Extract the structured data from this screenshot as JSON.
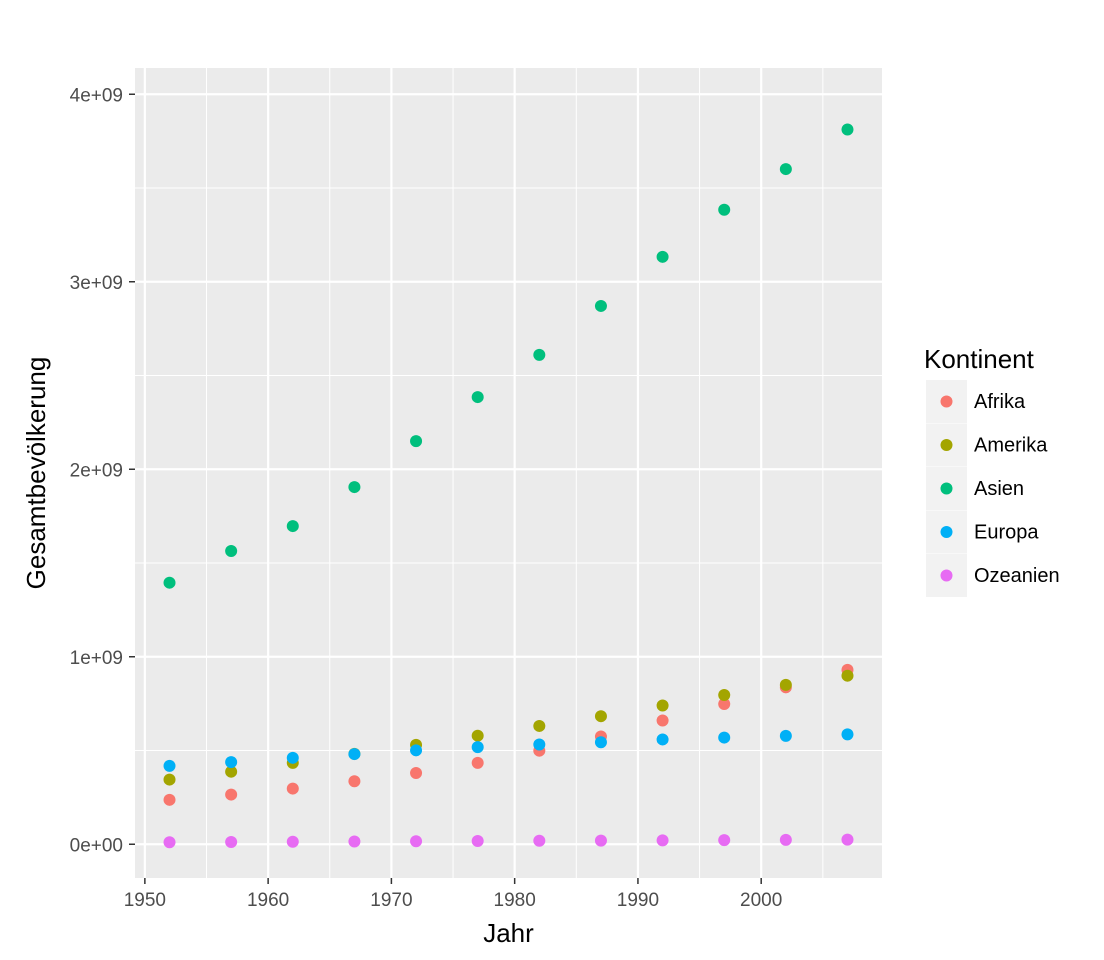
{
  "chart_data": {
    "type": "scatter",
    "title": "",
    "xlabel": "Jahr",
    "ylabel": "Gesamtbevölkerung",
    "xlim": [
      1949.2,
      2009.8
    ],
    "ylim": [
      -180000000,
      4140000000
    ],
    "x_ticks": [
      1950,
      1960,
      1970,
      1980,
      1990,
      2000
    ],
    "x_tick_labels": [
      "1950",
      "1960",
      "1970",
      "1980",
      "1990",
      "2000"
    ],
    "y_ticks": [
      0,
      1000000000,
      2000000000,
      3000000000,
      4000000000
    ],
    "y_tick_labels": [
      "0e+00",
      "1e+09",
      "2e+09",
      "3e+09",
      "4e+09"
    ],
    "grid": true,
    "legend": {
      "title": "Kontinent",
      "placement": "right"
    },
    "x": [
      1952,
      1957,
      1962,
      1967,
      1972,
      1977,
      1982,
      1987,
      1992,
      1997,
      2002,
      2007
    ],
    "series": [
      {
        "name": "Afrika",
        "color": "#F8766D",
        "values": [
          237000000,
          265000000,
          297000000,
          336000000,
          380000000,
          434000000,
          499000000,
          575000000,
          660000000,
          748000000,
          837000000,
          930000000
        ]
      },
      {
        "name": "Amerika",
        "color": "#A3A500",
        "values": [
          345000000,
          387000000,
          434000000,
          482000000,
          530000000,
          579000000,
          631000000,
          683000000,
          740000000,
          796000000,
          850000000,
          899000000
        ]
      },
      {
        "name": "Asien",
        "color": "#00BF7D",
        "values": [
          1395000000,
          1564000000,
          1697000000,
          1905000000,
          2150000000,
          2385000000,
          2610000000,
          2871000000,
          3133000000,
          3384000000,
          3601000000,
          3812000000
        ]
      },
      {
        "name": "Europa",
        "color": "#00B0F6",
        "values": [
          418000000,
          438000000,
          461000000,
          481000000,
          501000000,
          518000000,
          532000000,
          544000000,
          559000000,
          569000000,
          578000000,
          586000000
        ]
      },
      {
        "name": "Ozeanien",
        "color": "#E76BF3",
        "values": [
          10700000,
          11900000,
          13300000,
          14600000,
          16100000,
          17200000,
          18400000,
          19600000,
          20900000,
          22200000,
          23500000,
          24500000
        ]
      }
    ]
  }
}
